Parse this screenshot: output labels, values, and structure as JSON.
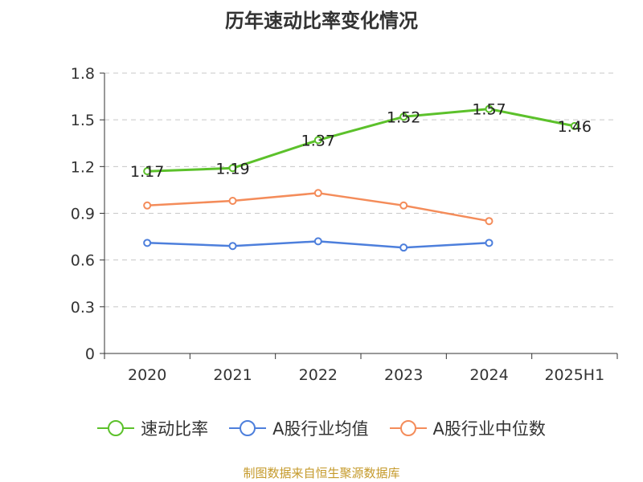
{
  "title": "历年速动比率变化情况",
  "source_note": "制图数据来自恒生聚源数据库",
  "chart_data": {
    "type": "line",
    "title": "历年速动比率变化情况",
    "categories": [
      "2020",
      "2021",
      "2022",
      "2023",
      "2024",
      "2025H1"
    ],
    "ylim": [
      0,
      1.8
    ],
    "yticks": [
      "0",
      "0.3",
      "0.6",
      "0.9",
      "1.2",
      "1.5",
      "1.8"
    ],
    "grid": true,
    "legend_position": "bottom",
    "series": [
      {
        "name": "速动比率",
        "color": "#5cc12b",
        "values": [
          1.17,
          1.19,
          1.37,
          1.52,
          1.57,
          1.46
        ],
        "labels": [
          "1.17",
          "1.19",
          "1.37",
          "1.52",
          "1.57",
          "1.46"
        ],
        "show_labels": true,
        "show_markers": true
      },
      {
        "name": "A股行业均值",
        "color": "#4d7fdc",
        "values": [
          0.71,
          0.69,
          0.72,
          0.68,
          0.71,
          null
        ],
        "show_labels": false,
        "show_markers": true
      },
      {
        "name": "A股行业中位数",
        "color": "#f48c5a",
        "values": [
          0.95,
          0.98,
          1.03,
          0.95,
          0.85,
          null
        ],
        "show_labels": false,
        "show_markers": true
      }
    ]
  }
}
